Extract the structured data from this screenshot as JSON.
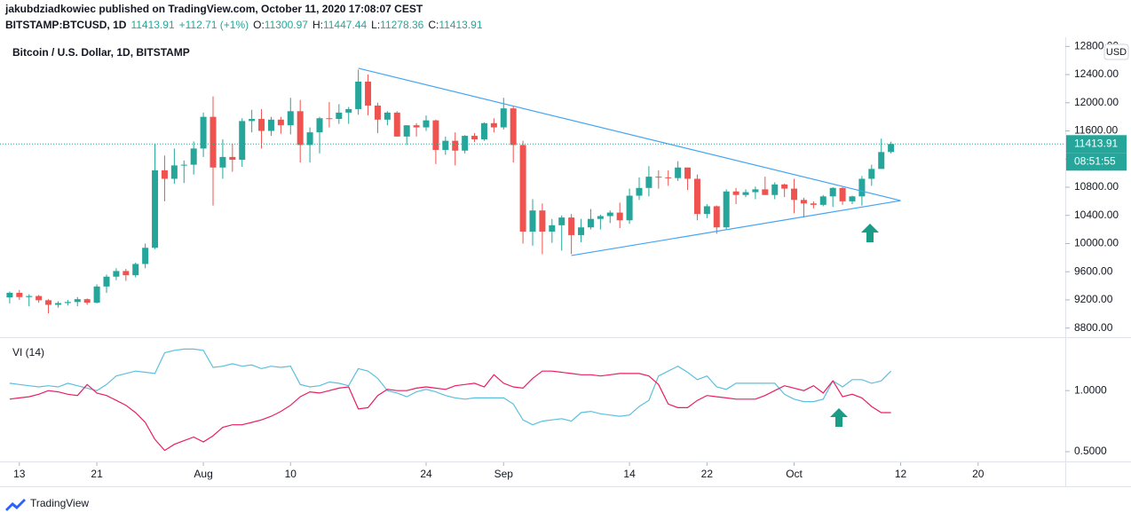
{
  "header": {
    "byline": "jakubdziadkowiec published on TradingView.com, October 11, 2020 17:08:07 CEST",
    "symbol": "BITSTAMP:BTCUSD, 1D",
    "change": "+112.71 (+1%)",
    "ohlc_keys": [
      "O:",
      "H:",
      "L:",
      "C:"
    ],
    "footer": "TradingView"
  },
  "chart_data": [
    {
      "type": "candlestick",
      "title": "Bitcoin / U.S. Dollar, 1D, BITSTAMP",
      "currency": "USD",
      "countdown": "08:51:55",
      "up_color": "#26a69a",
      "down_color": "#ef5350",
      "x": [
        "2020-07-12",
        "2020-07-13",
        "2020-07-14",
        "2020-07-15",
        "2020-07-16",
        "2020-07-17",
        "2020-07-18",
        "2020-07-19",
        "2020-07-20",
        "2020-07-21",
        "2020-07-22",
        "2020-07-23",
        "2020-07-24",
        "2020-07-25",
        "2020-07-26",
        "2020-07-27",
        "2020-07-28",
        "2020-07-29",
        "2020-07-30",
        "2020-07-31",
        "2020-08-01",
        "2020-08-02",
        "2020-08-03",
        "2020-08-04",
        "2020-08-05",
        "2020-08-06",
        "2020-08-07",
        "2020-08-08",
        "2020-08-09",
        "2020-08-10",
        "2020-08-11",
        "2020-08-12",
        "2020-08-13",
        "2020-08-14",
        "2020-08-15",
        "2020-08-16",
        "2020-08-17",
        "2020-08-18",
        "2020-08-19",
        "2020-08-20",
        "2020-08-21",
        "2020-08-22",
        "2020-08-23",
        "2020-08-24",
        "2020-08-25",
        "2020-08-26",
        "2020-08-27",
        "2020-08-28",
        "2020-08-29",
        "2020-08-30",
        "2020-08-31",
        "2020-09-01",
        "2020-09-02",
        "2020-09-03",
        "2020-09-04",
        "2020-09-05",
        "2020-09-06",
        "2020-09-07",
        "2020-09-08",
        "2020-09-09",
        "2020-09-10",
        "2020-09-11",
        "2020-09-12",
        "2020-09-13",
        "2020-09-14",
        "2020-09-15",
        "2020-09-16",
        "2020-09-17",
        "2020-09-18",
        "2020-09-19",
        "2020-09-20",
        "2020-09-21",
        "2020-09-22",
        "2020-09-23",
        "2020-09-24",
        "2020-09-25",
        "2020-09-26",
        "2020-09-27",
        "2020-09-28",
        "2020-09-29",
        "2020-09-30",
        "2020-10-01",
        "2020-10-02",
        "2020-10-03",
        "2020-10-04",
        "2020-10-05",
        "2020-10-06",
        "2020-10-07",
        "2020-10-08",
        "2020-10-09",
        "2020-10-10",
        "2020-10-11"
      ],
      "open": [
        9235,
        9300,
        9240,
        9255,
        9195,
        9130,
        9155,
        9170,
        9210,
        9160,
        9390,
        9530,
        9610,
        9550,
        9710,
        9940,
        11040,
        10920,
        11110,
        11120,
        11350,
        11800,
        11080,
        11230,
        11190,
        11740,
        11770,
        11600,
        11760,
        11680,
        11880,
        11400,
        11580,
        11780,
        11770,
        11860,
        11910,
        12300,
        11960,
        11760,
        11860,
        11520,
        11680,
        11650,
        11750,
        11330,
        11460,
        11320,
        11530,
        11480,
        11710,
        11650,
        11920,
        11400,
        10170,
        10470,
        10170,
        10260,
        10370,
        10120,
        10230,
        10350,
        10390,
        10440,
        10330,
        10680,
        10790,
        10950,
        10940,
        10930,
        11080,
        10920,
        10420,
        10530,
        10230,
        10740,
        10690,
        10730,
        10770,
        10690,
        10840,
        10780,
        10620,
        10570,
        10550,
        10670,
        10790,
        10600,
        10670,
        10920,
        11060,
        11300.97
      ],
      "high": [
        9320,
        9340,
        9280,
        9270,
        9210,
        9180,
        9200,
        9240,
        9220,
        9420,
        9560,
        9650,
        9640,
        9730,
        10000,
        11420,
        11250,
        11350,
        11180,
        11450,
        11860,
        12090,
        11480,
        11420,
        11780,
        11900,
        11910,
        11800,
        11800,
        12070,
        12040,
        11650,
        11800,
        12010,
        11980,
        11940,
        12470,
        12400,
        12000,
        11880,
        11880,
        11680,
        11710,
        11820,
        11760,
        11520,
        11580,
        11540,
        11570,
        11720,
        11780,
        12070,
        11950,
        11460,
        10630,
        10570,
        10350,
        10400,
        10420,
        10350,
        10490,
        10410,
        10470,
        10580,
        10780,
        10940,
        11100,
        11040,
        11040,
        11170,
        11080,
        10980,
        10560,
        10540,
        10770,
        10790,
        10770,
        10810,
        10950,
        10870,
        10850,
        10920,
        10650,
        10600,
        10690,
        10800,
        10800,
        10680,
        10960,
        11120,
        11490,
        11447.44
      ],
      "low": [
        9150,
        9200,
        9110,
        9160,
        9010,
        9090,
        9120,
        9110,
        9130,
        9150,
        9300,
        9480,
        9470,
        9520,
        9650,
        9920,
        10600,
        10850,
        10860,
        10980,
        11230,
        10540,
        10920,
        11020,
        11090,
        11580,
        11350,
        11530,
        11560,
        11550,
        11150,
        11150,
        11280,
        11650,
        11700,
        11700,
        11830,
        11820,
        11570,
        11680,
        11520,
        11400,
        11520,
        11600,
        11130,
        11260,
        11110,
        11280,
        11440,
        11460,
        11580,
        11620,
        11150,
        10000,
        9970,
        9850,
        10010,
        9900,
        9850,
        10020,
        10200,
        10200,
        10290,
        10220,
        10280,
        10620,
        10670,
        10780,
        10820,
        10890,
        10760,
        10330,
        10360,
        10140,
        10200,
        10560,
        10660,
        10630,
        10690,
        10630,
        10660,
        10430,
        10370,
        10500,
        10530,
        10520,
        10550,
        10560,
        10540,
        10820,
        11060,
        11278.36
      ],
      "close": [
        9300,
        9240,
        9255,
        9195,
        9130,
        9155,
        9170,
        9210,
        9160,
        9390,
        9530,
        9610,
        9550,
        9710,
        9940,
        11040,
        10920,
        11110,
        11120,
        11350,
        11800,
        11080,
        11230,
        11190,
        11740,
        11770,
        11600,
        11760,
        11680,
        11880,
        11400,
        11580,
        11780,
        11770,
        11860,
        11910,
        12300,
        11960,
        11760,
        11860,
        11520,
        11680,
        11650,
        11750,
        11330,
        11460,
        11320,
        11530,
        11480,
        11710,
        11650,
        11920,
        11400,
        10170,
        10470,
        10170,
        10260,
        10370,
        10120,
        10230,
        10350,
        10390,
        10440,
        10330,
        10680,
        10790,
        10950,
        10940,
        10930,
        11080,
        10920,
        10420,
        10530,
        10230,
        10740,
        10690,
        10730,
        10770,
        10690,
        10840,
        10780,
        10620,
        10570,
        10550,
        10670,
        10790,
        10600,
        10670,
        10920,
        11060,
        11300,
        11413.91
      ],
      "xlim": [
        "2020-07-11",
        "2020-10-29"
      ],
      "xticks": [
        {
          "value": "2020-07-13",
          "label": "13"
        },
        {
          "value": "2020-07-21",
          "label": "21"
        },
        {
          "value": "2020-08-01",
          "label": "Aug"
        },
        {
          "value": "2020-08-10",
          "label": "10"
        },
        {
          "value": "2020-08-24",
          "label": "24"
        },
        {
          "value": "2020-09-01",
          "label": "Sep"
        },
        {
          "value": "2020-09-14",
          "label": "14"
        },
        {
          "value": "2020-09-22",
          "label": "22"
        },
        {
          "value": "2020-10-01",
          "label": "Oct"
        },
        {
          "value": "2020-10-12",
          "label": "12"
        },
        {
          "value": "2020-10-20",
          "label": "20"
        }
      ],
      "ylim": [
        8670,
        12930
      ],
      "yticks": [
        {
          "value": 8800,
          "label": "8800.00"
        },
        {
          "value": 9200,
          "label": "9200.00"
        },
        {
          "value": 9600,
          "label": "9600.00"
        },
        {
          "value": 10000,
          "label": "10000.00"
        },
        {
          "value": 10400,
          "label": "10400.00"
        },
        {
          "value": 10800,
          "label": "10800.00"
        },
        {
          "value": 11200,
          "label": "11200.00"
        },
        {
          "value": 11600,
          "label": "11600.00"
        },
        {
          "value": 12000,
          "label": "12000.00"
        },
        {
          "value": 12400,
          "label": "12400.00"
        },
        {
          "value": 12800,
          "label": "12800.00"
        }
      ],
      "trendline_color": "#42a5f5",
      "trendlines": [
        {
          "x": [
            "2020-08-17",
            "2020-10-12"
          ],
          "y": [
            12490,
            10610
          ]
        },
        {
          "x": [
            "2020-09-08",
            "2020-10-12"
          ],
          "y": [
            9830,
            10610
          ]
        }
      ]
    },
    {
      "type": "line",
      "title": "VI (14)",
      "ylim": [
        0.42,
        1.43
      ],
      "yticks": [
        {
          "value": 1,
          "label": "1.0000"
        },
        {
          "value": 0.5,
          "label": "0.5000"
        }
      ],
      "series": [
        {
          "color": "#5bc0de",
          "values": [
            1.06,
            1.05,
            1.04,
            1.03,
            1.04,
            1.03,
            1.06,
            1.04,
            1.02,
            1.0,
            1.05,
            1.12,
            1.14,
            1.16,
            1.15,
            1.14,
            1.31,
            1.33,
            1.34,
            1.34,
            1.33,
            1.19,
            1.2,
            1.22,
            1.2,
            1.21,
            1.18,
            1.2,
            1.19,
            1.2,
            1.05,
            1.03,
            1.04,
            1.07,
            1.06,
            1.04,
            1.18,
            1.16,
            1.1,
            1.0,
            0.98,
            0.95,
            0.99,
            1.01,
            0.99,
            0.96,
            0.94,
            0.93,
            0.94,
            0.94,
            0.94,
            0.94,
            0.89,
            0.76,
            0.72,
            0.75,
            0.76,
            0.77,
            0.75,
            0.82,
            0.83,
            0.81,
            0.8,
            0.79,
            0.8,
            0.87,
            0.92,
            1.12,
            1.16,
            1.2,
            1.15,
            1.09,
            1.12,
            1.03,
            1.01,
            1.06,
            1.06,
            1.06,
            1.06,
            1.06,
            0.97,
            0.93,
            0.91,
            0.91,
            0.93,
            1.08,
            1.03,
            1.09,
            1.09,
            1.06,
            1.08,
            1.16
          ]
        },
        {
          "color": "#e91e63",
          "values": [
            0.93,
            0.94,
            0.95,
            0.97,
            1.0,
            0.99,
            0.97,
            0.96,
            1.05,
            0.98,
            0.96,
            0.92,
            0.88,
            0.82,
            0.74,
            0.6,
            0.51,
            0.56,
            0.59,
            0.62,
            0.58,
            0.63,
            0.7,
            0.72,
            0.72,
            0.74,
            0.76,
            0.79,
            0.83,
            0.88,
            0.95,
            0.99,
            0.98,
            1.0,
            1.02,
            1.03,
            0.85,
            0.86,
            0.96,
            1.01,
            1.0,
            1.0,
            1.02,
            1.03,
            1.02,
            1.01,
            1.04,
            1.05,
            1.06,
            1.03,
            1.13,
            1.06,
            1.03,
            1.02,
            1.1,
            1.16,
            1.16,
            1.15,
            1.14,
            1.13,
            1.13,
            1.12,
            1.13,
            1.14,
            1.14,
            1.14,
            1.12,
            1.05,
            0.89,
            0.86,
            0.86,
            0.92,
            0.96,
            0.95,
            0.94,
            0.93,
            0.93,
            0.93,
            0.96,
            1.0,
            1.04,
            1.02,
            1.0,
            1.04,
            0.98,
            1.08,
            0.95,
            0.97,
            0.94,
            0.87,
            0.82,
            0.82
          ]
        }
      ]
    }
  ]
}
